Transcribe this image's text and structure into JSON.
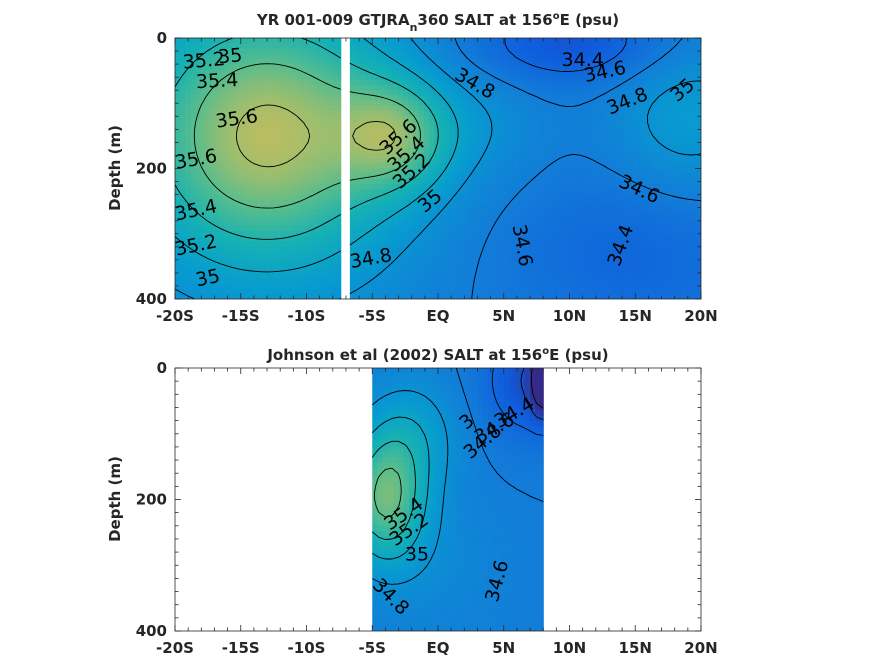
{
  "figure": {
    "background": "#ffffff",
    "colormap": "parula"
  },
  "chart_data": [
    {
      "type": "heatmap",
      "title": {
        "prefix": "YR 001-009 GTJRA",
        "subscript": "n",
        "middle": "360 SALT at 156",
        "superscript": "o",
        "suffix": "E (psu)"
      },
      "ylabel": "Depth (m)",
      "xlim": [
        -20,
        20
      ],
      "ylim": [
        0,
        400
      ],
      "y_reversed": true,
      "xticks": [
        "-20S",
        "-15S",
        "-10S",
        "-5S",
        "EQ",
        "5N",
        "10N",
        "15N",
        "20N"
      ],
      "yticks": [
        "0",
        "200",
        "400"
      ],
      "color_range": [
        34.0,
        36.0
      ],
      "data_x_ranges": [
        [
          -20,
          -7.4
        ],
        [
          -6.7,
          20
        ]
      ],
      "contour_labels": [
        {
          "text": "35.2",
          "x": -17.8,
          "y": 35,
          "angle": -5
        },
        {
          "text": "35",
          "x": -15.8,
          "y": 28,
          "angle": -5
        },
        {
          "text": "35.4",
          "x": -16.8,
          "y": 66,
          "angle": -3
        },
        {
          "text": "35.6",
          "x": -15.3,
          "y": 124,
          "angle": -8
        },
        {
          "text": "35.6",
          "x": -18.4,
          "y": 186,
          "angle": -10
        },
        {
          "text": "35.4",
          "x": -18.4,
          "y": 264,
          "angle": -12
        },
        {
          "text": "35.2",
          "x": -18.4,
          "y": 318,
          "angle": -12
        },
        {
          "text": "35",
          "x": -17.5,
          "y": 368,
          "angle": -12
        },
        {
          "text": "35.6",
          "x": -3.0,
          "y": 152,
          "angle": -42
        },
        {
          "text": "35.4",
          "x": -2.4,
          "y": 178,
          "angle": -42
        },
        {
          "text": "35.2",
          "x": -2.0,
          "y": 204,
          "angle": -42
        },
        {
          "text": "35",
          "x": -0.6,
          "y": 250,
          "angle": -40
        },
        {
          "text": "34.8",
          "x": 2.8,
          "y": 70,
          "angle": 30
        },
        {
          "text": "34.4",
          "x": 11.0,
          "y": 34,
          "angle": 0
        },
        {
          "text": "34.6",
          "x": 12.7,
          "y": 52,
          "angle": -12
        },
        {
          "text": "34.8",
          "x": 14.4,
          "y": 97,
          "angle": -22
        },
        {
          "text": "35",
          "x": 18.6,
          "y": 80,
          "angle": -40
        },
        {
          "text": "34.6",
          "x": 15.3,
          "y": 232,
          "angle": 25
        },
        {
          "text": "34.4",
          "x": 13.9,
          "y": 318,
          "angle": -70
        },
        {
          "text": "34.6",
          "x": 6.4,
          "y": 318,
          "angle": 80
        },
        {
          "text": "34.8",
          "x": -5.1,
          "y": 338,
          "angle": -10
        }
      ]
    },
    {
      "type": "heatmap",
      "title": {
        "prefix": "Johnson et al (2002) SALT at 156",
        "superscript": "o",
        "suffix": "E (psu)"
      },
      "ylabel": "Depth (m)",
      "xlim": [
        -20,
        20
      ],
      "ylim": [
        0,
        400
      ],
      "y_reversed": true,
      "xticks": [
        "-20S",
        "-15S",
        "-10S",
        "-5S",
        "EQ",
        "5N",
        "10N",
        "15N",
        "20N"
      ],
      "yticks": [
        "0",
        "200",
        "400"
      ],
      "color_range": [
        34.0,
        36.0
      ],
      "data_x_ranges": [
        [
          -5,
          8
        ]
      ],
      "contour_labels": [
        {
          "text": "34.4",
          "x": 5.8,
          "y": 68,
          "angle": -30
        },
        {
          "text": "34.6",
          "x": 4.3,
          "y": 92,
          "angle": -30
        },
        {
          "text": "34.8",
          "x": 3.4,
          "y": 112,
          "angle": -40
        },
        {
          "text": "3",
          "x": 2.2,
          "y": 82,
          "angle": -40
        },
        {
          "text": "35.4",
          "x": -2.6,
          "y": 222,
          "angle": -35
        },
        {
          "text": "35.2",
          "x": -2.2,
          "y": 246,
          "angle": -35
        },
        {
          "text": "35",
          "x": -1.6,
          "y": 284,
          "angle": 0
        },
        {
          "text": "34.6",
          "x": 4.5,
          "y": 324,
          "angle": -75
        },
        {
          "text": "34.8",
          "x": -3.6,
          "y": 348,
          "angle": 45
        }
      ]
    }
  ]
}
